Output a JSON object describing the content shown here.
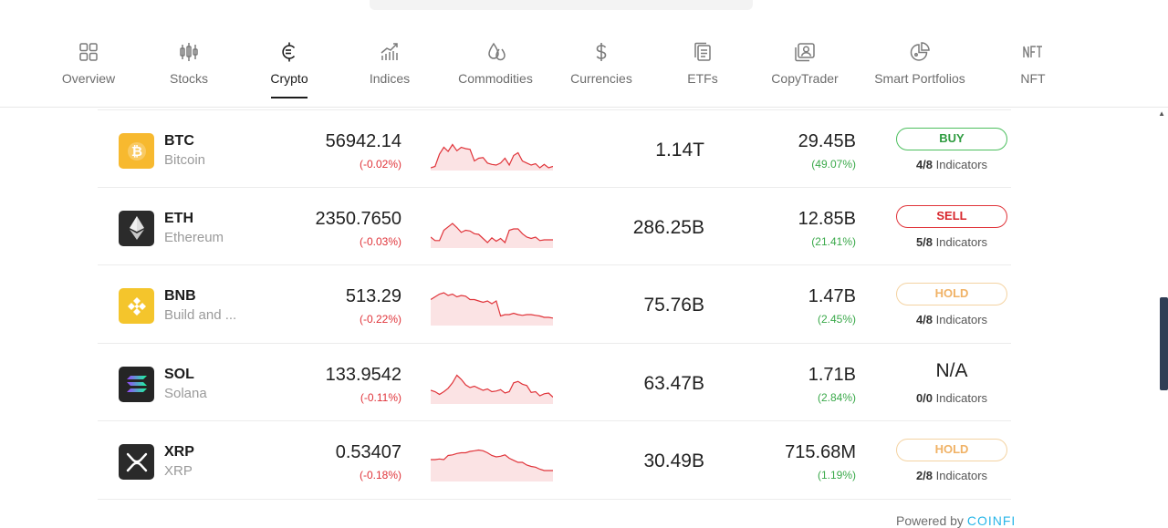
{
  "nav": [
    {
      "label": "Overview",
      "icon": "overview-grid-icon",
      "active": false
    },
    {
      "label": "Stocks",
      "icon": "stocks-candles-icon",
      "active": false
    },
    {
      "label": "Crypto",
      "icon": "crypto-coin-icon",
      "active": true
    },
    {
      "label": "Indices",
      "icon": "indices-chart-icon",
      "active": false
    },
    {
      "label": "Commodities",
      "icon": "commodities-drop-icon",
      "active": false
    },
    {
      "label": "Currencies",
      "icon": "currencies-dollar-icon",
      "active": false
    },
    {
      "label": "ETFs",
      "icon": "etfs-stack-icon",
      "active": false
    },
    {
      "label": "CopyTrader",
      "icon": "copytrader-person-icon",
      "active": false
    },
    {
      "label": "Smart Portfolios",
      "icon": "smart-portfolios-pie-icon",
      "active": false
    },
    {
      "label": "NFT",
      "icon": "nft-icon",
      "active": false
    }
  ],
  "rows": [
    {
      "symbol": "BTC",
      "name": "Bitcoin",
      "logo_color": "#f7b92f",
      "logo_icon": "bitcoin-icon",
      "price": "56942.14",
      "change": "(-0.02%)",
      "market_cap": "1.14T",
      "volume": "29.45B",
      "volume_change": "(49.07%)",
      "signal": "BUY",
      "signal_kind": "buy",
      "indicators_count": "4/8",
      "indicators_label": "Indicators",
      "spark": [
        52,
        50,
        32,
        22,
        28,
        18,
        27,
        22,
        24,
        25,
        42,
        38,
        37,
        45,
        47,
        48,
        45,
        38,
        48,
        34,
        30,
        42,
        45,
        48,
        46,
        52,
        47,
        52,
        50
      ]
    },
    {
      "symbol": "ETH",
      "name": "Ethereum",
      "logo_color": "#2b2b2b",
      "logo_icon": "ethereum-icon",
      "price": "2350.7650",
      "change": "(-0.03%)",
      "market_cap": "286.25B",
      "volume": "12.85B",
      "volume_change": "(21.41%)",
      "signal": "SELL",
      "signal_kind": "sell",
      "indicators_count": "5/8",
      "indicators_label": "Indicators",
      "spark": [
        40,
        45,
        45,
        30,
        25,
        20,
        26,
        33,
        30,
        31,
        35,
        36,
        42,
        48,
        41,
        46,
        42,
        48,
        30,
        28,
        28,
        35,
        40,
        42,
        40,
        45,
        44,
        44,
        44
      ]
    },
    {
      "symbol": "BNB",
      "name": "Build and ...",
      "logo_color": "#f4c52c",
      "logo_icon": "bnb-icon",
      "price": "513.29",
      "change": "(-0.22%)",
      "market_cap": "75.76B",
      "volume": "1.47B",
      "volume_change": "(2.45%)",
      "signal": "HOLD",
      "signal_kind": "hold",
      "indicators_count": "4/8",
      "indicators_label": "Indicators",
      "spark": [
        18,
        14,
        10,
        8,
        12,
        10,
        14,
        12,
        13,
        18,
        18,
        20,
        22,
        20,
        24,
        20,
        42,
        40,
        40,
        38,
        40,
        41,
        40,
        40,
        41,
        42,
        44,
        44,
        45
      ]
    },
    {
      "symbol": "SOL",
      "name": "Solana",
      "logo_color": "#252525",
      "logo_icon": "solana-icon",
      "price": "133.9542",
      "change": "(-0.11%)",
      "market_cap": "63.47B",
      "volume": "1.71B",
      "volume_change": "(2.84%)",
      "signal": "N/A",
      "signal_kind": "na",
      "indicators_count": "0/0",
      "indicators_label": "Indicators",
      "spark": [
        36,
        38,
        42,
        38,
        33,
        25,
        14,
        20,
        28,
        32,
        30,
        33,
        36,
        34,
        38,
        37,
        35,
        40,
        38,
        25,
        23,
        27,
        29,
        39,
        38,
        44,
        41,
        40,
        46
      ]
    },
    {
      "symbol": "XRP",
      "name": "XRP",
      "logo_color": "#2a2a2a",
      "logo_icon": "xrp-icon",
      "price": "0.53407",
      "change": "(-0.18%)",
      "market_cap": "30.49B",
      "volume": "715.68M",
      "volume_change": "(1.19%)",
      "signal": "HOLD",
      "signal_kind": "hold",
      "indicators_count": "2/8",
      "indicators_label": "Indicators",
      "spark": [
        24,
        24,
        23,
        24,
        18,
        17,
        15,
        14,
        14,
        12,
        11,
        10,
        11,
        14,
        18,
        20,
        19,
        17,
        22,
        25,
        28,
        28,
        32,
        34,
        35,
        38,
        40,
        40,
        40
      ]
    }
  ],
  "footer": {
    "powered_label": "Powered by",
    "brand": "COINFI"
  }
}
